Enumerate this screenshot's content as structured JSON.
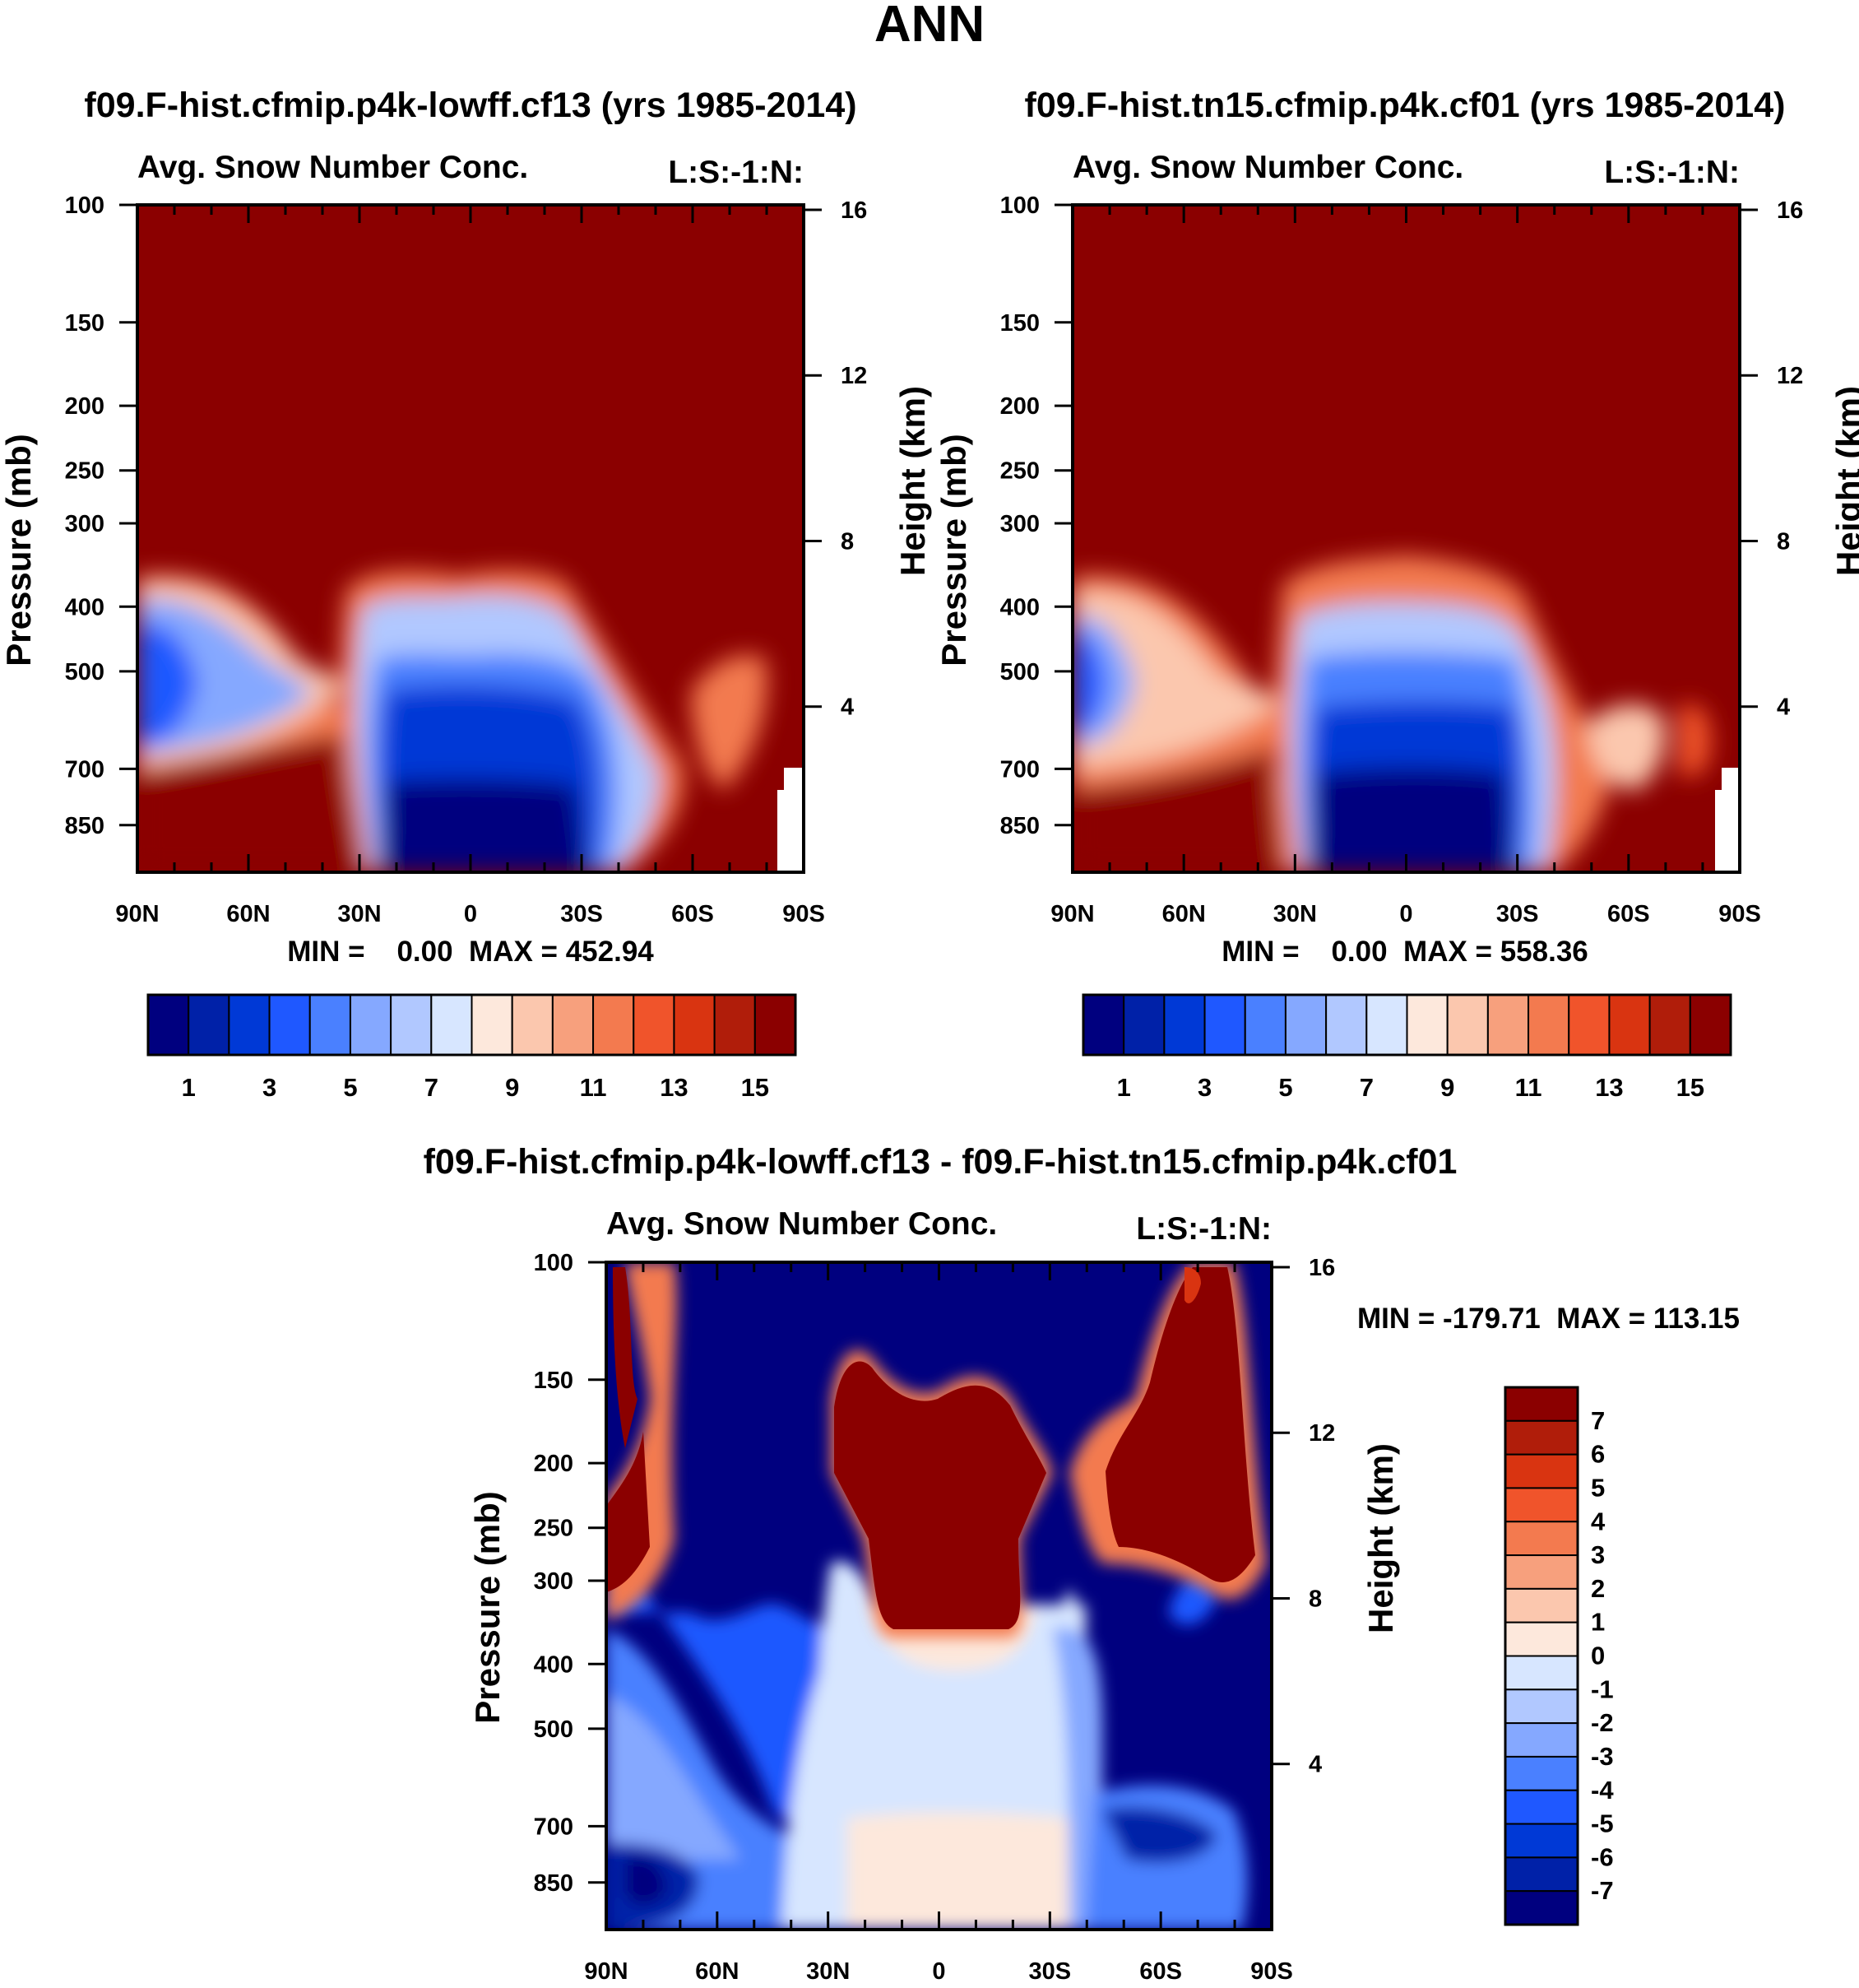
{
  "page_title": "ANN",
  "panels": [
    {
      "case_title": "f09.F-hist.cfmip.p4k-lowff.cf13 (yrs 1985-2014)",
      "variable": "Avg. Snow Number Conc.",
      "code": "L:S:-1:N:",
      "stats": "MIN =    0.00  MAX = 452.94"
    },
    {
      "case_title": "f09.F-hist.tn15.cfmip.p4k.cf01 (yrs 1985-2014)",
      "variable": "Avg. Snow Number Conc.",
      "code": "L:S:-1:N:",
      "stats": "MIN =    0.00  MAX = 558.36"
    },
    {
      "case_title": "f09.F-hist.cfmip.p4k-lowff.cf13 - f09.F-hist.tn15.cfmip.p4k.cf01",
      "variable": "Avg. Snow Number Conc.",
      "code": "L:S:-1:N:",
      "stats": "MIN = -179.71  MAX = 113.15"
    }
  ],
  "colors": {
    "abs_scale": [
      "#00007f",
      "#0021a8",
      "#0039d6",
      "#1f58ff",
      "#4a80ff",
      "#85a8ff",
      "#b1c8ff",
      "#d7e6ff",
      "#fde8dc",
      "#fbc7ae",
      "#f7a07d",
      "#f37a4f",
      "#f0542b",
      "#d93411",
      "#b01d0a",
      "#8b0000"
    ],
    "diff_scale": [
      "#00007f",
      "#0021a8",
      "#0039d6",
      "#1f58ff",
      "#4a80ff",
      "#85a8ff",
      "#b1c8ff",
      "#d7e6ff",
      "#fde8dc",
      "#fbc7ae",
      "#f7a07d",
      "#f37a4f",
      "#f0542b",
      "#d93411",
      "#b01d0a",
      "#8b0000"
    ]
  },
  "chart_data": [
    {
      "type": "heatmap",
      "title": "Avg. Snow Number Conc.",
      "xlabel": "",
      "ylabel": "Pressure (mb)",
      "y2label": "Height (km)",
      "x_ticks": [
        "90N",
        "60N",
        "30N",
        "0",
        "30S",
        "60S",
        "90S"
      ],
      "y_ticks": [
        100,
        150,
        200,
        250,
        300,
        400,
        500,
        700,
        850
      ],
      "y2_ticks": [
        16,
        12,
        8,
        4
      ],
      "y_scale": "log",
      "ylim": [
        100,
        1000
      ],
      "min": 0.0,
      "max": 452.94,
      "colorbar_labels": [
        "1",
        "3",
        "5",
        "7",
        "9",
        "11",
        "13",
        "15"
      ],
      "colorbar_orientation": "horizontal"
    },
    {
      "type": "heatmap",
      "title": "Avg. Snow Number Conc.",
      "xlabel": "",
      "ylabel": "Pressure (mb)",
      "y2label": "Height (km)",
      "x_ticks": [
        "90N",
        "60N",
        "30N",
        "0",
        "30S",
        "60S",
        "90S"
      ],
      "y_ticks": [
        100,
        150,
        200,
        250,
        300,
        400,
        500,
        700,
        850
      ],
      "y2_ticks": [
        16,
        12,
        8,
        4
      ],
      "y_scale": "log",
      "ylim": [
        100,
        1000
      ],
      "min": 0.0,
      "max": 558.36,
      "colorbar_labels": [
        "1",
        "3",
        "5",
        "7",
        "9",
        "11",
        "13",
        "15"
      ],
      "colorbar_orientation": "horizontal"
    },
    {
      "type": "heatmap",
      "title": "Avg. Snow Number Conc.",
      "xlabel": "",
      "ylabel": "Pressure (mb)",
      "y2label": "Height (km)",
      "x_ticks": [
        "90N",
        "60N",
        "30N",
        "0",
        "30S",
        "60S",
        "90S"
      ],
      "y_ticks": [
        100,
        150,
        200,
        250,
        300,
        400,
        500,
        700,
        850
      ],
      "y2_ticks": [
        16,
        12,
        8,
        4
      ],
      "y_scale": "log",
      "ylim": [
        100,
        1000
      ],
      "min": -179.71,
      "max": 113.15,
      "colorbar_labels": [
        "7",
        "6",
        "5",
        "4",
        "3",
        "2",
        "1",
        "0",
        "-1",
        "-2",
        "-3",
        "-4",
        "-5",
        "-6",
        "-7"
      ],
      "colorbar_orientation": "vertical"
    }
  ]
}
